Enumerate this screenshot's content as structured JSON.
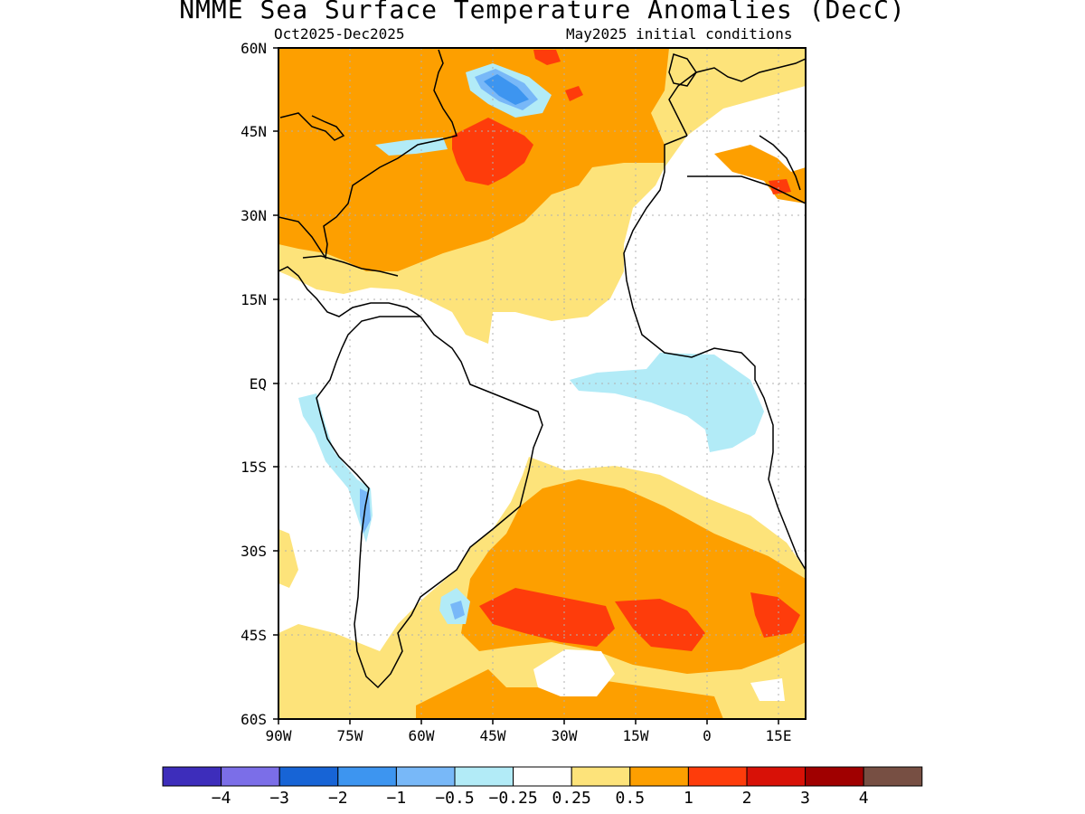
{
  "header": {
    "title": "NMME Sea Surface Temperature Anomalies (DecC)",
    "period": "Oct2025-Dec2025",
    "init": "May2025 initial conditions"
  },
  "axes": {
    "lat_labels": [
      "60N",
      "45N",
      "30N",
      "15N",
      "EQ",
      "15S",
      "30S",
      "45S",
      "60S"
    ],
    "lon_labels": [
      "90W",
      "75W",
      "60W",
      "45W",
      "30W",
      "15W",
      "0",
      "15E"
    ]
  },
  "colorbar": {
    "colors": [
      "#3d2dbb",
      "#7b6ee8",
      "#1764d6",
      "#3d95f0",
      "#78b8f8",
      "#b2ebf7",
      "#ffffff",
      "#fde37a",
      "#fd9f00",
      "#fe3c0b",
      "#d81107",
      "#a00000",
      "#774f43"
    ],
    "labels": [
      "−4",
      "−3",
      "−2",
      "−1",
      "−0.5",
      "−0.25",
      "0.25",
      "0.5",
      "1",
      "2",
      "3",
      "4"
    ]
  },
  "legend_colors": {
    "warm_light": "#fde37a",
    "warm": "#fd9f00",
    "warm_strong": "#fe3c0b",
    "cool_light": "#b2ebf7",
    "cool": "#78b8f8",
    "cool_strong": "#3d95f0",
    "extreme_warm": "#774f43"
  }
}
